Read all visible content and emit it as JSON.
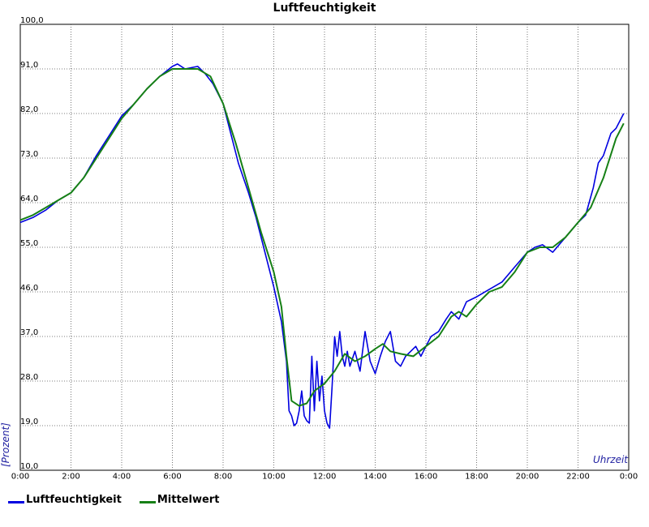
{
  "chart_data": {
    "type": "line",
    "title": "Luftfeuchtigkeit",
    "xlabel": "Uhrzeit",
    "ylabel": "[Prozent]",
    "xlim": [
      0,
      24
    ],
    "ylim": [
      10,
      100
    ],
    "x_ticks": [
      "0:00",
      "2:00",
      "4:00",
      "6:00",
      "8:00",
      "10:00",
      "12:00",
      "14:00",
      "16:00",
      "18:00",
      "20:00",
      "22:00",
      "0:00"
    ],
    "y_ticks": [
      "10,0",
      "19,0",
      "28,0",
      "37,0",
      "46,0",
      "55,0",
      "64,0",
      "73,0",
      "82,0",
      "91,0",
      "100,0"
    ],
    "grid": true,
    "legend_position": "bottom-left",
    "series": [
      {
        "name": "Luftfeuchtigkeit",
        "color": "#0000e0",
        "x": [
          0,
          0.5,
          1,
          1.5,
          2,
          2.5,
          3,
          3.5,
          4,
          4.5,
          5,
          5.5,
          6,
          6.2,
          6.5,
          7,
          7.3,
          7.6,
          8,
          8.3,
          8.6,
          9,
          9.3,
          9.6,
          10,
          10.3,
          10.5,
          10.6,
          10.7,
          10.8,
          10.9,
          11.0,
          11.1,
          11.2,
          11.3,
          11.4,
          11.5,
          11.6,
          11.7,
          11.8,
          11.9,
          12.0,
          12.1,
          12.2,
          12.3,
          12.4,
          12.5,
          12.6,
          12.7,
          12.8,
          12.9,
          13.0,
          13.2,
          13.4,
          13.6,
          13.8,
          14.0,
          14.2,
          14.4,
          14.6,
          14.8,
          15.0,
          15.2,
          15.4,
          15.6,
          15.8,
          16.0,
          16.2,
          16.5,
          16.8,
          17.0,
          17.3,
          17.6,
          18.0,
          18.5,
          19.0,
          19.5,
          20.0,
          20.3,
          20.6,
          21.0,
          21.5,
          22.0,
          22.3,
          22.6,
          22.8,
          23.0,
          23.3,
          23.5,
          23.8
        ],
        "values": [
          60.0,
          61.0,
          62.5,
          64.5,
          66.0,
          69.0,
          73.5,
          77.5,
          81.5,
          84.0,
          87.0,
          89.5,
          91.5,
          92.0,
          91.0,
          91.5,
          90.0,
          88.0,
          84.0,
          78.0,
          72.0,
          66.0,
          61.0,
          55.0,
          47.0,
          40.0,
          32.0,
          22.0,
          21.0,
          19.0,
          19.5,
          22.0,
          26.0,
          21.0,
          20.0,
          19.5,
          33.0,
          22.0,
          32.0,
          24.0,
          29.0,
          22.0,
          19.5,
          18.5,
          27.0,
          37.0,
          33.0,
          38.0,
          33.0,
          31.0,
          34.0,
          31.0,
          34.0,
          30.0,
          38.0,
          32.0,
          29.5,
          33.0,
          36.0,
          38.0,
          32.0,
          31.0,
          33.0,
          34.0,
          35.0,
          33.0,
          35.0,
          37.0,
          38.0,
          40.5,
          42.0,
          40.5,
          44.0,
          45.0,
          46.5,
          48.0,
          51.0,
          54.0,
          55.0,
          55.5,
          54.0,
          57.0,
          60.0,
          61.5,
          67.0,
          72.0,
          73.5,
          78.0,
          79.0,
          82.0
        ]
      },
      {
        "name": "Mittelwert",
        "color": "#168016",
        "x": [
          0,
          0.5,
          1,
          1.5,
          2,
          2.5,
          3,
          3.5,
          4,
          4.5,
          5,
          5.5,
          6,
          6.5,
          7,
          7.5,
          8,
          8.5,
          9,
          9.5,
          10,
          10.3,
          10.5,
          10.7,
          11.0,
          11.3,
          11.6,
          12.0,
          12.4,
          12.8,
          13.2,
          13.6,
          14.0,
          14.3,
          14.6,
          15.0,
          15.5,
          16.0,
          16.5,
          17.0,
          17.3,
          17.6,
          18.0,
          18.5,
          19.0,
          19.5,
          20.0,
          20.5,
          21.0,
          21.5,
          22.0,
          22.5,
          23.0,
          23.5,
          23.8
        ],
        "values": [
          60.5,
          61.5,
          63.0,
          64.5,
          66.0,
          69.0,
          73.0,
          77.0,
          81.0,
          84.0,
          87.0,
          89.5,
          91.0,
          91.0,
          91.0,
          89.5,
          84.0,
          76.0,
          67.0,
          58.0,
          50.0,
          43.0,
          33.0,
          24.0,
          23.0,
          23.5,
          26.0,
          27.5,
          30.0,
          33.5,
          32.0,
          33.0,
          34.5,
          35.5,
          34.0,
          33.5,
          33.0,
          35.0,
          37.0,
          41.0,
          42.0,
          41.0,
          43.5,
          46.0,
          47.0,
          50.0,
          54.0,
          55.0,
          55.0,
          57.0,
          60.0,
          63.0,
          69.0,
          77.0,
          80.0
        ]
      }
    ]
  }
}
